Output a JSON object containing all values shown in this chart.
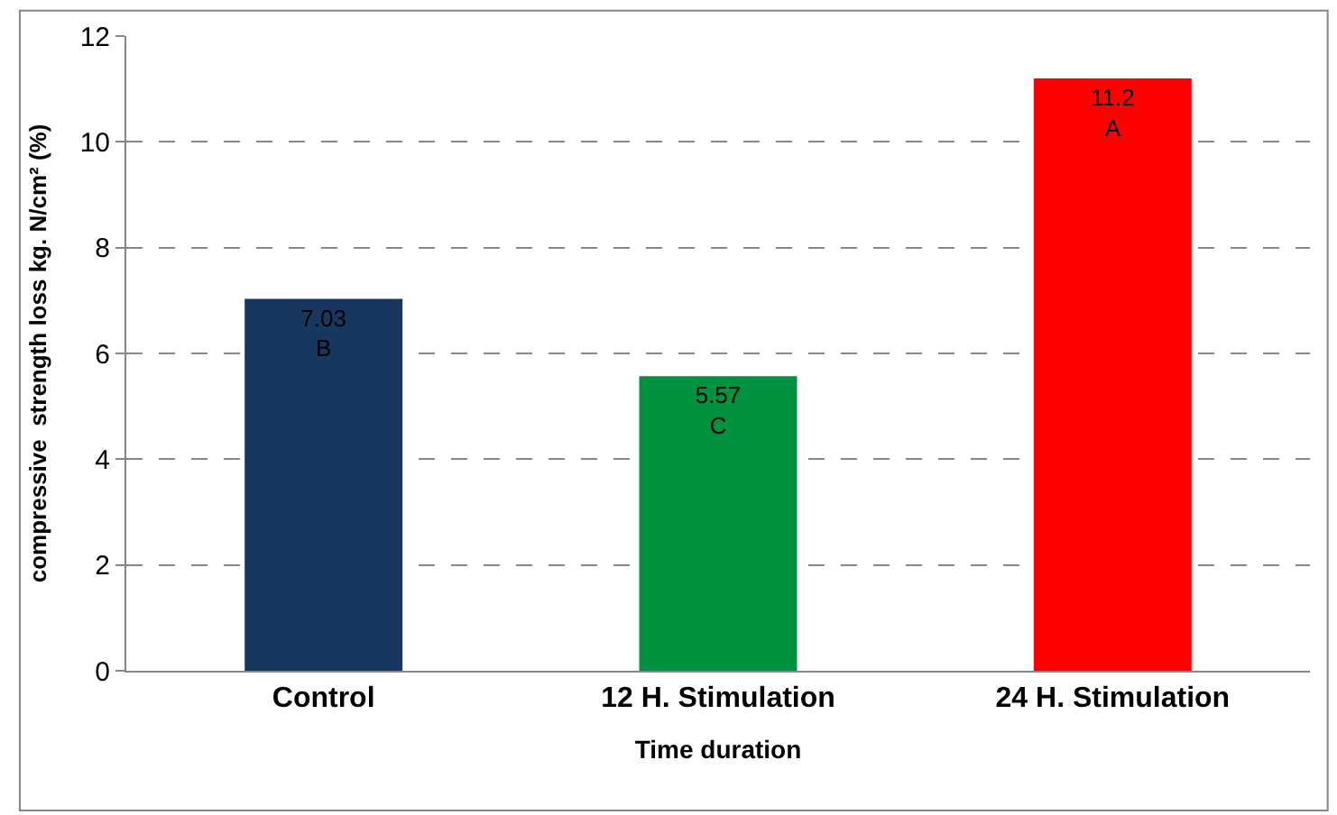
{
  "chart_data": {
    "type": "bar",
    "xlabel": "Time duration",
    "ylabel": "compressive  strength loss kg. N/cm² (%)",
    "categories": [
      "Control",
      "12 H. Stimulation",
      "24 H. Stimulation"
    ],
    "values": [
      7.03,
      5.57,
      11.2
    ],
    "colors": [
      "#17375e",
      "#00923f",
      "#ff0000"
    ],
    "value_labels": [
      "7.03\nB",
      "5.57\nC",
      "11.2\nA"
    ],
    "ylim": [
      0,
      12
    ],
    "yticks": [
      0,
      2,
      4,
      6,
      8,
      10,
      12
    ],
    "grid": "y"
  }
}
